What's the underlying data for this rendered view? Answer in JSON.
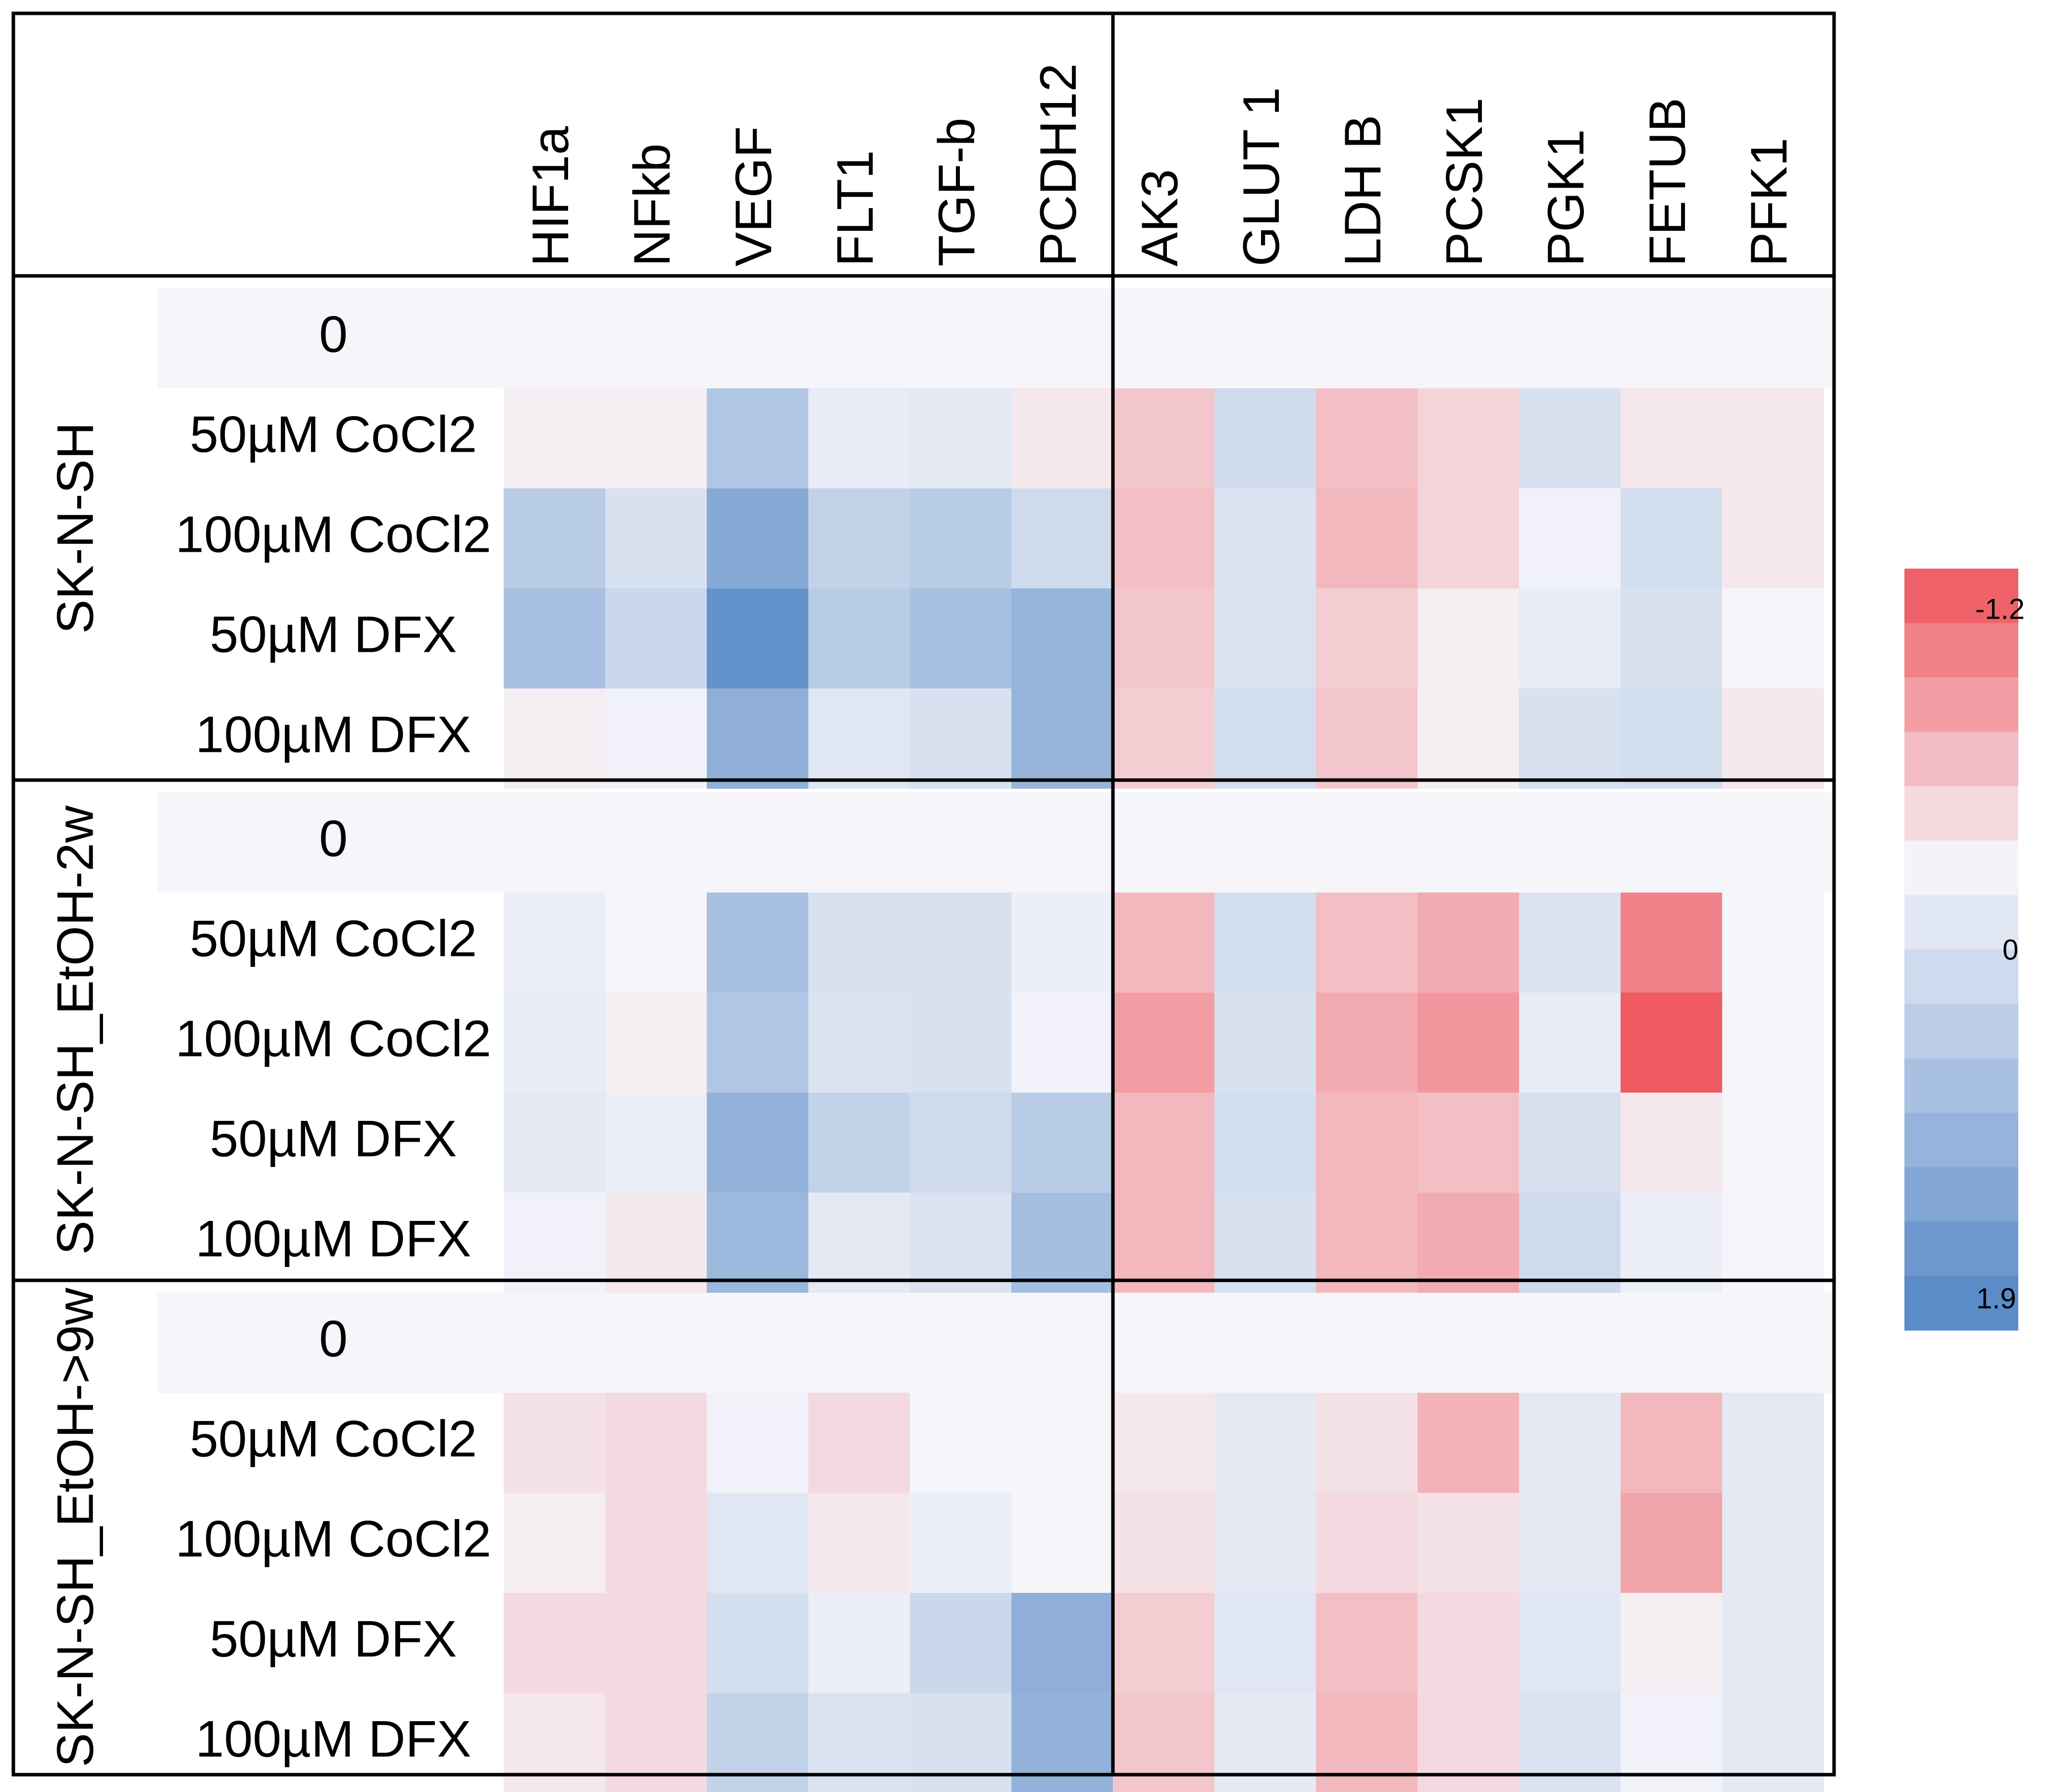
{
  "chart_data": {
    "type": "heatmap",
    "title": "",
    "gene_groups": [
      [
        "HIF1a",
        "NFkb",
        "VEGF",
        "FLT1",
        "TGF-b",
        "PCDH12"
      ],
      [
        "AK3",
        "GLUT 1",
        "LDH B",
        "PCSK1",
        "PGK1",
        "FETUB",
        "PFK1"
      ]
    ],
    "columns": [
      "HIF1a",
      "NFkb",
      "VEGF",
      "FLT1",
      "TGF-b",
      "PCDH12",
      "AK3",
      "GLUT 1",
      "LDH B",
      "PCSK1",
      "PGK1",
      "FETUB",
      "PFK1"
    ],
    "conditions": [
      "0",
      "50µM CoCl2",
      "100µM CoCl2",
      "50µM DFX",
      "100µM DFX"
    ],
    "colorbar": {
      "top_label": "-1.2",
      "mid_label": "0",
      "bottom_label": "1.9",
      "min": -1.2,
      "max": 1.9,
      "negative_color": "#ef535b",
      "neutral_color": "#f5f5fa",
      "positive_color": "#5386c5",
      "steps": 14
    },
    "groups": [
      {
        "name": "SK-N-SH",
        "values": [
          [
            0,
            0,
            0,
            0,
            0,
            0,
            0,
            0,
            0,
            0,
            0,
            0,
            0
          ],
          [
            -0.05,
            -0.05,
            0.8,
            0.15,
            0.2,
            -0.1,
            -0.35,
            0.45,
            -0.4,
            -0.25,
            0.35,
            -0.1,
            -0.1
          ],
          [
            0.7,
            0.35,
            1.3,
            0.6,
            0.7,
            0.45,
            -0.4,
            0.3,
            -0.45,
            -0.25,
            0.05,
            0.4,
            -0.1
          ],
          [
            0.9,
            0.5,
            1.7,
            0.7,
            0.9,
            1.1,
            -0.35,
            0.3,
            -0.3,
            -0.05,
            0.15,
            0.35,
            0
          ],
          [
            -0.05,
            0.05,
            1.2,
            0.25,
            0.35,
            1.1,
            -0.3,
            0.4,
            -0.35,
            -0.05,
            0.35,
            0.4,
            -0.1
          ]
        ]
      },
      {
        "name": "SK-N-SH_EtOH-2w",
        "values": [
          [
            0,
            0,
            0,
            0,
            0,
            0,
            0,
            0,
            0,
            0,
            0,
            0,
            0
          ],
          [
            0.1,
            0,
            0.9,
            0.35,
            0.35,
            0.1,
            -0.45,
            0.4,
            -0.4,
            -0.55,
            0.3,
            -0.85,
            0
          ],
          [
            0.15,
            -0.05,
            0.8,
            0.3,
            0.35,
            0.05,
            -0.65,
            0.35,
            -0.55,
            -0.7,
            0.15,
            -1.15,
            0
          ],
          [
            0.2,
            0.1,
            1.15,
            0.6,
            0.45,
            0.7,
            -0.45,
            0.4,
            -0.45,
            -0.4,
            0.35,
            -0.1,
            0
          ],
          [
            0.05,
            -0.1,
            1.05,
            0.2,
            0.3,
            0.95,
            -0.45,
            0.35,
            -0.45,
            -0.55,
            0.45,
            0.1,
            0
          ]
        ]
      },
      {
        "name": "SK-N-SH_EtOH->9w",
        "values": [
          [
            0,
            0,
            0,
            0,
            0,
            0,
            0,
            0,
            0,
            0,
            0,
            0,
            0
          ],
          [
            -0.15,
            -0.2,
            0.05,
            -0.2,
            0,
            0,
            -0.1,
            0.2,
            -0.15,
            -0.5,
            0.2,
            -0.45,
            0.2
          ],
          [
            -0.05,
            -0.2,
            0.25,
            -0.1,
            0.1,
            0,
            -0.15,
            0.2,
            -0.2,
            -0.15,
            0.2,
            -0.6,
            0.2
          ],
          [
            -0.2,
            -0.2,
            0.4,
            0.1,
            0.5,
            1.2,
            -0.3,
            0.25,
            -0.4,
            -0.2,
            0.25,
            -0.05,
            0.2
          ],
          [
            -0.1,
            -0.2,
            0.6,
            0.3,
            0.35,
            1.15,
            -0.35,
            0.2,
            -0.45,
            -0.2,
            0.3,
            0.05,
            0.2
          ]
        ]
      }
    ]
  }
}
